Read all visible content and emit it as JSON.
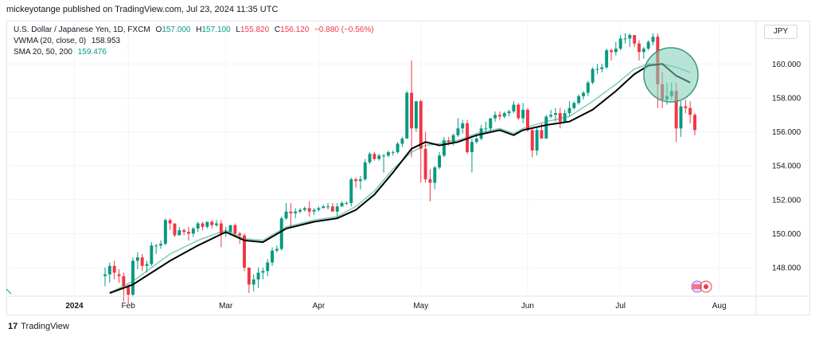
{
  "header": {
    "publisher_line": "mickeyotange published on TradingView.com, Jul 23, 2024 11:35 UTC"
  },
  "legend": {
    "symbol": "U.S. Dollar / Japanese Yen, 1D, FXCM",
    "ohlc": {
      "o_label": "O",
      "o": "157.000",
      "h_label": "H",
      "h": "157.100",
      "l_label": "L",
      "l": "155.820",
      "c_label": "C",
      "c": "156.120",
      "chg": "−0.880 (−0.56%)"
    },
    "vwma_label": "VWMA (20, close, 0)",
    "vwma_value": "158.953",
    "sma_label": "SMA 20, 50, 200",
    "sma_value": "159.476"
  },
  "currency": "JPY",
  "footer": {
    "brand": "TradingView",
    "logo_text": "17"
  },
  "chart_data": {
    "type": "candlestick",
    "symbol": "USDJPY",
    "timeframe": "1D",
    "y_ticks": [
      "148.000",
      "150.000",
      "152.000",
      "154.000",
      "156.000",
      "158.000",
      "160.000"
    ],
    "x_ticks": [
      "2024",
      "Feb",
      "Mar",
      "Apr",
      "May",
      "Jun",
      "Jul",
      "Aug"
    ],
    "ylim": [
      146.5,
      162.5
    ],
    "colors": {
      "up": "#089981",
      "down": "#f23645",
      "vwma": "#000000",
      "sma": "#7ccdb5",
      "highlight": "#7ccdb5"
    },
    "candles": [
      [
        "2024-01-25",
        147.5,
        148.0,
        146.9,
        147.6
      ],
      [
        "2024-01-26",
        147.6,
        148.3,
        147.1,
        148.1
      ],
      [
        "2024-01-29",
        148.1,
        148.4,
        147.3,
        147.7
      ],
      [
        "2024-01-30",
        147.6,
        147.9,
        147.1,
        147.5
      ],
      [
        "2024-01-31",
        147.5,
        147.7,
        146.0,
        146.9
      ],
      [
        "2024-02-01",
        146.9,
        147.0,
        145.9,
        146.4
      ],
      [
        "2024-02-02",
        146.4,
        148.6,
        146.3,
        148.4
      ],
      [
        "2024-02-05",
        148.4,
        148.9,
        147.9,
        148.6
      ],
      [
        "2024-02-06",
        148.6,
        148.8,
        147.8,
        148.1
      ],
      [
        "2024-02-07",
        148.1,
        148.4,
        147.7,
        148.2
      ],
      [
        "2024-02-08",
        148.2,
        149.5,
        148.1,
        149.3
      ],
      [
        "2024-02-09",
        149.3,
        149.4,
        148.8,
        149.3
      ],
      [
        "2024-02-12",
        149.3,
        149.6,
        149.1,
        149.4
      ],
      [
        "2024-02-13",
        149.4,
        150.9,
        149.3,
        150.8
      ],
      [
        "2024-02-14",
        150.8,
        150.9,
        150.2,
        150.6
      ],
      [
        "2024-02-15",
        150.6,
        150.6,
        149.8,
        149.9
      ],
      [
        "2024-02-16",
        149.9,
        150.4,
        149.9,
        150.2
      ],
      [
        "2024-02-19",
        150.2,
        150.3,
        149.9,
        150.1
      ],
      [
        "2024-02-20",
        150.1,
        150.4,
        149.6,
        150.0
      ],
      [
        "2024-02-21",
        150.0,
        150.4,
        149.8,
        150.3
      ],
      [
        "2024-02-22",
        150.3,
        150.7,
        150.1,
        150.6
      ],
      [
        "2024-02-23",
        150.6,
        150.7,
        150.2,
        150.4
      ],
      [
        "2024-02-26",
        150.4,
        150.7,
        150.3,
        150.7
      ],
      [
        "2024-02-27",
        150.7,
        150.8,
        150.3,
        150.5
      ],
      [
        "2024-02-28",
        150.5,
        150.8,
        150.4,
        150.6
      ],
      [
        "2024-02-29",
        150.6,
        150.8,
        149.2,
        150.0
      ],
      [
        "2024-03-01",
        150.0,
        150.4,
        149.8,
        150.1
      ],
      [
        "2024-03-04",
        150.1,
        150.5,
        149.9,
        150.5
      ],
      [
        "2024-03-05",
        150.5,
        150.6,
        149.8,
        150.0
      ],
      [
        "2024-03-06",
        150.0,
        150.1,
        149.4,
        149.9
      ],
      [
        "2024-03-07",
        149.9,
        150.0,
        147.8,
        148.0
      ],
      [
        "2024-03-08",
        148.0,
        148.0,
        146.5,
        147.0
      ],
      [
        "2024-03-11",
        147.0,
        147.6,
        146.6,
        147.3
      ],
      [
        "2024-03-12",
        147.3,
        148.0,
        146.8,
        147.7
      ],
      [
        "2024-03-13",
        147.7,
        148.0,
        147.3,
        147.8
      ],
      [
        "2024-03-14",
        147.8,
        148.5,
        147.5,
        148.3
      ],
      [
        "2024-03-15",
        148.3,
        149.2,
        148.1,
        149.0
      ],
      [
        "2024-03-18",
        149.0,
        149.3,
        148.9,
        149.1
      ],
      [
        "2024-03-19",
        149.1,
        151.0,
        149.0,
        150.9
      ],
      [
        "2024-03-20",
        150.9,
        151.8,
        150.8,
        151.3
      ],
      [
        "2024-03-21",
        151.3,
        151.8,
        150.3,
        151.2
      ],
      [
        "2024-03-22",
        151.2,
        151.5,
        150.9,
        151.3
      ],
      [
        "2024-03-25",
        151.3,
        151.5,
        151.2,
        151.4
      ],
      [
        "2024-03-26",
        151.4,
        151.6,
        151.3,
        151.5
      ],
      [
        "2024-03-27",
        151.5,
        151.9,
        151.0,
        151.3
      ],
      [
        "2024-03-28",
        151.3,
        151.5,
        151.1,
        151.4
      ],
      [
        "2024-04-01",
        151.4,
        151.6,
        151.3,
        151.5
      ],
      [
        "2024-04-02",
        151.5,
        151.7,
        151.5,
        151.6
      ],
      [
        "2024-04-03",
        151.6,
        151.8,
        151.4,
        151.6
      ],
      [
        "2024-04-04",
        151.6,
        151.8,
        151.3,
        151.3
      ],
      [
        "2024-04-05",
        151.3,
        151.8,
        151.0,
        151.6
      ],
      [
        "2024-04-08",
        151.6,
        151.9,
        151.6,
        151.8
      ],
      [
        "2024-04-09",
        151.8,
        151.9,
        151.7,
        151.8
      ],
      [
        "2024-04-10",
        151.8,
        153.3,
        151.6,
        153.2
      ],
      [
        "2024-04-11",
        153.2,
        153.3,
        152.7,
        153.1
      ],
      [
        "2024-04-12",
        153.1,
        153.4,
        152.6,
        153.2
      ],
      [
        "2024-04-15",
        153.2,
        154.4,
        153.1,
        154.2
      ],
      [
        "2024-04-16",
        154.2,
        154.8,
        154.1,
        154.7
      ],
      [
        "2024-04-17",
        154.7,
        154.8,
        154.3,
        154.4
      ],
      [
        "2024-04-18",
        154.4,
        154.7,
        154.3,
        154.6
      ],
      [
        "2024-04-19",
        154.6,
        154.7,
        153.6,
        154.6
      ],
      [
        "2024-04-22",
        154.6,
        154.9,
        154.5,
        154.8
      ],
      [
        "2024-04-23",
        154.8,
        154.9,
        154.6,
        154.8
      ],
      [
        "2024-04-24",
        154.8,
        155.4,
        154.7,
        155.3
      ],
      [
        "2024-04-25",
        155.3,
        155.7,
        155.1,
        155.6
      ],
      [
        "2024-04-26",
        155.6,
        158.4,
        155.6,
        158.3
      ],
      [
        "2024-04-29",
        158.3,
        160.2,
        154.5,
        156.2
      ],
      [
        "2024-04-30",
        156.2,
        157.8,
        156.0,
        157.8
      ],
      [
        "2024-05-01",
        157.8,
        157.9,
        153.0,
        155.0
      ],
      [
        "2024-05-02",
        155.0,
        156.0,
        153.0,
        153.2
      ],
      [
        "2024-05-03",
        153.2,
        153.8,
        151.9,
        153.0
      ],
      [
        "2024-05-06",
        153.0,
        154.0,
        152.6,
        153.9
      ],
      [
        "2024-05-07",
        153.9,
        154.8,
        153.8,
        154.6
      ],
      [
        "2024-05-08",
        154.6,
        155.7,
        154.5,
        155.5
      ],
      [
        "2024-05-09",
        155.5,
        155.7,
        155.2,
        155.4
      ],
      [
        "2024-05-10",
        155.4,
        155.9,
        155.2,
        155.8
      ],
      [
        "2024-05-13",
        155.8,
        156.8,
        155.7,
        156.2
      ],
      [
        "2024-05-14",
        156.2,
        156.7,
        155.9,
        156.5
      ],
      [
        "2024-05-15",
        156.5,
        156.7,
        154.7,
        154.8
      ],
      [
        "2024-05-16",
        154.8,
        155.6,
        153.6,
        155.4
      ],
      [
        "2024-05-17",
        155.4,
        155.8,
        155.3,
        155.6
      ],
      [
        "2024-05-20",
        155.6,
        156.4,
        155.5,
        156.2
      ],
      [
        "2024-05-21",
        156.2,
        156.6,
        155.9,
        156.2
      ],
      [
        "2024-05-22",
        156.2,
        156.8,
        156.0,
        156.8
      ],
      [
        "2024-05-23",
        156.8,
        157.2,
        156.6,
        157.0
      ],
      [
        "2024-05-24",
        157.0,
        157.2,
        156.7,
        156.9
      ],
      [
        "2024-05-27",
        156.9,
        157.2,
        156.8,
        157.1
      ],
      [
        "2024-05-28",
        157.1,
        157.3,
        156.9,
        157.2
      ],
      [
        "2024-05-29",
        157.2,
        157.8,
        157.1,
        157.6
      ],
      [
        "2024-05-30",
        157.6,
        157.7,
        156.7,
        156.8
      ],
      [
        "2024-05-31",
        156.8,
        157.7,
        156.5,
        157.3
      ],
      [
        "2024-06-03",
        157.3,
        157.4,
        156.0,
        156.1
      ],
      [
        "2024-06-04",
        156.1,
        156.2,
        154.5,
        154.9
      ],
      [
        "2024-06-05",
        154.9,
        156.3,
        154.6,
        156.1
      ],
      [
        "2024-06-06",
        156.1,
        156.5,
        155.6,
        155.6
      ],
      [
        "2024-06-07",
        155.6,
        157.0,
        155.6,
        156.9
      ],
      [
        "2024-06-10",
        156.9,
        157.3,
        156.8,
        157.0
      ],
      [
        "2024-06-11",
        157.0,
        157.4,
        156.6,
        157.1
      ],
      [
        "2024-06-12",
        157.1,
        157.4,
        156.2,
        156.6
      ],
      [
        "2024-06-13",
        156.6,
        157.3,
        156.6,
        157.1
      ],
      [
        "2024-06-14",
        157.1,
        157.8,
        156.9,
        157.4
      ],
      [
        "2024-06-17",
        157.4,
        157.8,
        157.3,
        157.7
      ],
      [
        "2024-06-18",
        157.7,
        158.2,
        157.6,
        158.1
      ],
      [
        "2024-06-19",
        158.1,
        158.4,
        157.9,
        158.3
      ],
      [
        "2024-06-20",
        158.3,
        159.0,
        158.1,
        158.9
      ],
      [
        "2024-06-21",
        158.9,
        159.8,
        158.8,
        159.7
      ],
      [
        "2024-06-24",
        159.7,
        160.0,
        159.4,
        159.7
      ],
      [
        "2024-06-25",
        159.7,
        160.0,
        159.5,
        159.8
      ],
      [
        "2024-06-26",
        159.8,
        160.9,
        159.7,
        160.8
      ],
      [
        "2024-06-27",
        160.8,
        160.9,
        160.2,
        160.7
      ],
      [
        "2024-06-28",
        160.7,
        161.3,
        160.5,
        160.9
      ],
      [
        "2024-07-01",
        160.9,
        161.7,
        160.8,
        161.5
      ],
      [
        "2024-07-02",
        161.5,
        161.8,
        161.2,
        161.5
      ],
      [
        "2024-07-03",
        161.5,
        161.8,
        161.0,
        161.7
      ],
      [
        "2024-07-04",
        161.7,
        161.7,
        161.0,
        161.2
      ],
      [
        "2024-07-05",
        161.2,
        161.4,
        160.2,
        160.7
      ],
      [
        "2024-07-08",
        160.7,
        161.0,
        160.3,
        160.9
      ],
      [
        "2024-07-09",
        160.9,
        161.4,
        160.8,
        161.3
      ],
      [
        "2024-07-10",
        161.3,
        161.8,
        161.1,
        161.6
      ],
      [
        "2024-07-11",
        161.6,
        161.8,
        157.4,
        158.8
      ],
      [
        "2024-07-12",
        158.8,
        159.5,
        157.4,
        157.9
      ],
      [
        "2024-07-15",
        157.9,
        158.9,
        157.6,
        158.1
      ],
      [
        "2024-07-16",
        158.1,
        158.9,
        157.9,
        158.4
      ],
      [
        "2024-07-17",
        158.4,
        158.9,
        155.4,
        156.2
      ],
      [
        "2024-07-18",
        156.2,
        157.8,
        155.7,
        157.5
      ],
      [
        "2024-07-19",
        157.5,
        157.9,
        157.1,
        157.4
      ],
      [
        "2024-07-22",
        157.4,
        157.8,
        156.5,
        157.0
      ],
      [
        "2024-07-23",
        157.0,
        157.1,
        155.8,
        156.1
      ]
    ],
    "vwma": [
      [
        1,
        146.5
      ],
      [
        6,
        147.0
      ],
      [
        14,
        148.4
      ],
      [
        20,
        149.3
      ],
      [
        26,
        150.1
      ],
      [
        30,
        149.6
      ],
      [
        34,
        149.5
      ],
      [
        39,
        150.3
      ],
      [
        45,
        150.7
      ],
      [
        50,
        150.9
      ],
      [
        54,
        151.4
      ],
      [
        58,
        152.3
      ],
      [
        62,
        153.6
      ],
      [
        66,
        155.0
      ],
      [
        69,
        155.4
      ],
      [
        72,
        155.2
      ],
      [
        76,
        155.4
      ],
      [
        80,
        155.8
      ],
      [
        85,
        156.1
      ],
      [
        88,
        155.8
      ],
      [
        90,
        156.1
      ],
      [
        95,
        156.4
      ],
      [
        100,
        156.6
      ],
      [
        105,
        157.3
      ],
      [
        110,
        158.4
      ],
      [
        114,
        159.4
      ],
      [
        117,
        159.9
      ],
      [
        120,
        160.0
      ],
      [
        123,
        159.3
      ],
      [
        126,
        158.9
      ]
    ],
    "sma": [
      [
        1,
        146.5
      ],
      [
        6,
        147.2
      ],
      [
        14,
        148.8
      ],
      [
        20,
        149.6
      ],
      [
        26,
        150.2
      ],
      [
        30,
        149.7
      ],
      [
        34,
        149.6
      ],
      [
        39,
        150.4
      ],
      [
        45,
        150.8
      ],
      [
        50,
        151.0
      ],
      [
        54,
        151.6
      ],
      [
        58,
        152.5
      ],
      [
        62,
        153.8
      ],
      [
        66,
        154.8
      ],
      [
        69,
        155.2
      ],
      [
        72,
        155.3
      ],
      [
        76,
        155.5
      ],
      [
        80,
        155.9
      ],
      [
        85,
        156.2
      ],
      [
        88,
        155.9
      ],
      [
        90,
        156.2
      ],
      [
        95,
        156.6
      ],
      [
        100,
        156.9
      ],
      [
        105,
        157.8
      ],
      [
        110,
        158.8
      ],
      [
        114,
        159.7
      ],
      [
        117,
        160.0
      ],
      [
        120,
        160.0
      ],
      [
        123,
        159.8
      ],
      [
        126,
        159.5
      ]
    ]
  }
}
